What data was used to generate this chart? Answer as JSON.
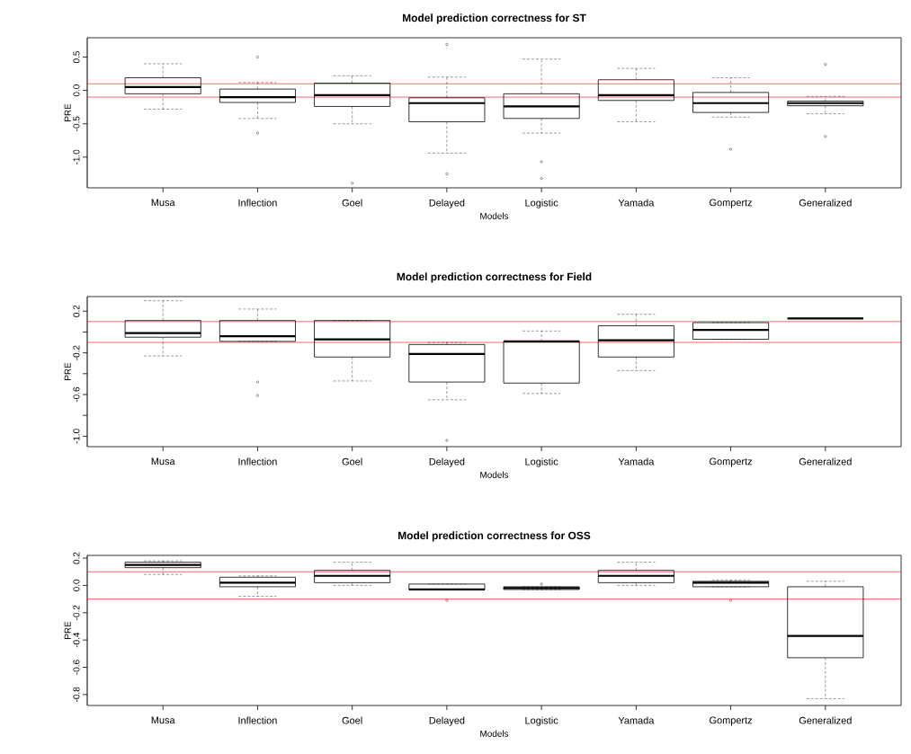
{
  "chart_data": [
    {
      "type": "box",
      "title": "Model prediction correctness for ST",
      "xlabel": "Models",
      "ylabel": "PRE",
      "categories": [
        "Musa",
        "Inflection",
        "Goel",
        "Delayed",
        "Logistic",
        "Yamada",
        "Gompertz",
        "Generalized"
      ],
      "boxes": [
        {
          "low": -0.28,
          "q1": -0.05,
          "median": 0.05,
          "q3": 0.19,
          "high": 0.4
        },
        {
          "low": -0.42,
          "q1": -0.18,
          "median": -0.1,
          "q3": 0.02,
          "high": 0.12,
          "outliers": [
            0.5,
            -0.64
          ]
        },
        {
          "low": -0.5,
          "q1": -0.24,
          "median": -0.07,
          "q3": 0.11,
          "high": 0.22,
          "outliers": [
            -1.39
          ]
        },
        {
          "low": -0.94,
          "q1": -0.47,
          "median": -0.19,
          "q3": -0.11,
          "high": 0.2,
          "outliers": [
            0.69,
            -1.25
          ]
        },
        {
          "low": -0.64,
          "q1": -0.42,
          "median": -0.24,
          "q3": -0.05,
          "high": 0.47,
          "outliers": [
            -1.07,
            -1.32
          ]
        },
        {
          "low": -0.47,
          "q1": -0.15,
          "median": -0.07,
          "q3": 0.16,
          "high": 0.33
        },
        {
          "low": -0.4,
          "q1": -0.33,
          "median": -0.19,
          "q3": -0.03,
          "high": 0.19,
          "outliers": [
            -0.88
          ]
        },
        {
          "low": -0.35,
          "q1": -0.23,
          "median": -0.19,
          "q3": -0.16,
          "high": -0.09,
          "outliers": [
            0.39,
            -0.69
          ]
        }
      ],
      "ylim": [
        -1.46,
        0.79
      ],
      "yticks": [
        {
          "value": -1,
          "label": "-1.0"
        },
        -0.5,
        {
          "value": 0,
          "label": "0.0"
        },
        0.5
      ],
      "ref_lines": [
        {
          "axis": "y",
          "value": 0.1,
          "color": "#ff0000"
        },
        {
          "axis": "y",
          "value": -0.1,
          "color": "#ff0000"
        }
      ]
    },
    {
      "type": "box",
      "title": "Model prediction correctness for Field",
      "xlabel": "Models",
      "ylabel": "PRE",
      "categories": [
        "Musa",
        "Inflection",
        "Goel",
        "Delayed",
        "Logistic",
        "Yamada",
        "Gompertz",
        "Generalized"
      ],
      "boxes": [
        {
          "low": -0.23,
          "q1": -0.05,
          "median": -0.01,
          "q3": 0.11,
          "high": 0.3
        },
        {
          "low": -0.09,
          "q1": -0.09,
          "median": -0.04,
          "q3": 0.11,
          "high": 0.22,
          "outliers": [
            -0.48,
            -0.61
          ]
        },
        {
          "low": -0.47,
          "q1": -0.24,
          "median": -0.07,
          "q3": 0.11,
          "high": 0.11
        },
        {
          "low": -0.65,
          "q1": -0.48,
          "median": -0.21,
          "q3": -0.12,
          "high": -0.1,
          "outliers": [
            -1.04
          ]
        },
        {
          "low": -0.59,
          "q1": -0.49,
          "median": -0.09,
          "q3": -0.09,
          "high": 0.01
        },
        {
          "low": -0.37,
          "q1": -0.24,
          "median": -0.08,
          "q3": 0.06,
          "high": 0.17
        },
        {
          "low": -0.07,
          "q1": -0.07,
          "median": 0.02,
          "q3": 0.09,
          "high": 0.09
        },
        {
          "low": 0.13,
          "q1": 0.13,
          "median": 0.13,
          "q3": 0.13,
          "high": 0.13
        }
      ],
      "ylim": [
        -1.1,
        0.34
      ],
      "yticks": [
        {
          "value": -1,
          "label": "-1.0"
        },
        {
          "value": -0.8,
          "label": null
        },
        -0.6,
        {
          "value": -0.4,
          "label": null
        },
        -0.2,
        {
          "value": 0,
          "label": null
        },
        0.2
      ],
      "ref_lines": [
        {
          "axis": "y",
          "value": 0.1,
          "color": "#ff0000"
        },
        {
          "axis": "y",
          "value": -0.1,
          "color": "#ff0000"
        }
      ]
    },
    {
      "type": "box",
      "title": "Model prediction correctness for OSS",
      "xlabel": "Models",
      "ylabel": "PRE",
      "categories": [
        "Musa",
        "Inflection",
        "Goel",
        "Delayed",
        "Logistic",
        "Yamada",
        "Gompertz",
        "Generalized"
      ],
      "boxes": [
        {
          "low": 0.08,
          "q1": 0.13,
          "median": 0.15,
          "q3": 0.17,
          "high": 0.18
        },
        {
          "low": -0.08,
          "q1": -0.01,
          "median": 0.02,
          "q3": 0.06,
          "high": 0.07
        },
        {
          "low": 0.0,
          "q1": 0.02,
          "median": 0.07,
          "q3": 0.11,
          "high": 0.17
        },
        {
          "low": -0.03,
          "q1": -0.03,
          "median": -0.03,
          "q3": 0.01,
          "high": 0.01,
          "outliers": [
            -0.11
          ]
        },
        {
          "low": -0.03,
          "q1": -0.03,
          "median": -0.02,
          "q3": -0.01,
          "high": -0.01,
          "outliers": [
            0.01
          ]
        },
        {
          "low": 0.0,
          "q1": 0.02,
          "median": 0.07,
          "q3": 0.11,
          "high": 0.17
        },
        {
          "low": -0.01,
          "q1": -0.01,
          "median": 0.02,
          "q3": 0.03,
          "high": 0.04,
          "outliers": [
            -0.11
          ]
        },
        {
          "low": -0.83,
          "q1": -0.53,
          "median": -0.37,
          "q3": -0.01,
          "high": 0.03
        }
      ],
      "ylim": [
        -0.88,
        0.22
      ],
      "yticks": [
        -0.8,
        -0.6,
        -0.4,
        -0.2,
        {
          "value": 0,
          "label": "0.0"
        },
        0.2
      ],
      "ref_lines": [
        {
          "axis": "y",
          "value": 0.1,
          "color": "#ff0000"
        },
        {
          "axis": "y",
          "value": -0.1,
          "color": "#ff0000"
        }
      ]
    }
  ]
}
